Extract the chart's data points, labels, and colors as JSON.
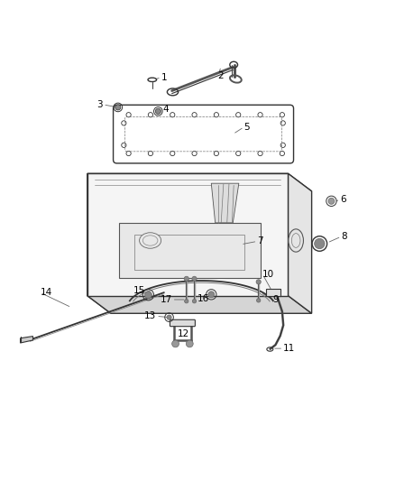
{
  "background_color": "#ffffff",
  "line_color": "#333333",
  "label_color": "#000000",
  "figsize": [
    4.38,
    5.33
  ],
  "dpi": 100
}
